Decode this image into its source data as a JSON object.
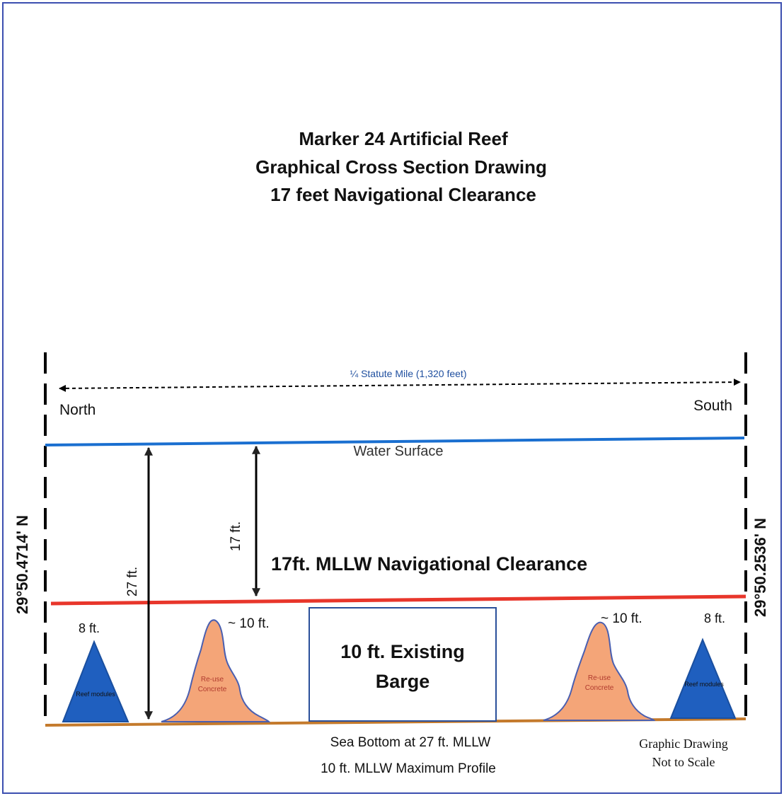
{
  "title": {
    "line1": "Marker 24 Artificial Reef",
    "line2": "Graphical Cross Section Drawing",
    "line3": "17 feet Navigational Clearance"
  },
  "span": {
    "label": "¼ Statute Mile (1,320 feet)"
  },
  "directions": {
    "north": "North",
    "south": "South"
  },
  "coordinates": {
    "north": "29°50.4714' N",
    "south": "29°50.2536' N"
  },
  "water_surface": {
    "label": "Water Surface",
    "color": "#1a6fd0"
  },
  "clearance_line": {
    "label": "17ft. MLLW Navigational Clearance",
    "color": "#e8362b"
  },
  "depths": {
    "total": "27 ft.",
    "clearance": "17 ft."
  },
  "structures": {
    "reef_left": {
      "height_label": "8 ft.",
      "label": "Reef modules"
    },
    "concrete_left": {
      "height_label": "~ 10 ft.",
      "label_line1": "Re-use",
      "label_line2": "Concrete"
    },
    "barge": {
      "label_line1": "10 ft. Existing",
      "label_line2": "Barge"
    },
    "concrete_right": {
      "height_label": "~ 10 ft.",
      "label_line1": "Re-use",
      "label_line2": "Concrete"
    },
    "reef_right": {
      "height_label": "8 ft.",
      "label": "Reef modules"
    }
  },
  "bottom": {
    "line1": "Sea Bottom at 27 ft. MLLW",
    "line2": "10 ft. MLLW Maximum Profile"
  },
  "note": {
    "line1": "Graphic Drawing",
    "line2": "Not to Scale"
  },
  "colors": {
    "reef": "#1f5fbf",
    "concrete": "#f4a578",
    "seabed": "#c47a2c",
    "barge_outline": "#2a4f9a"
  }
}
